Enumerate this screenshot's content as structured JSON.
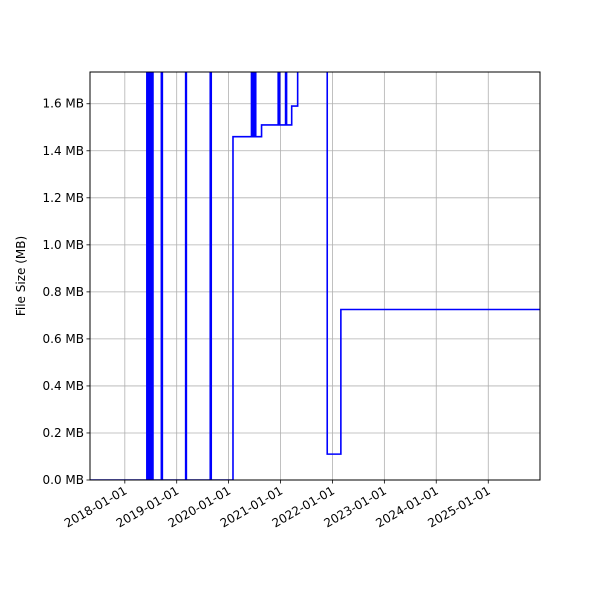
{
  "chart_data": {
    "type": "line",
    "drawstyle": "steps-post",
    "title": "",
    "xlabel": "",
    "ylabel": "File Size (MB)",
    "x_type": "date",
    "xlim": [
      "2017-05-01",
      "2025-12-31"
    ],
    "ylim": [
      0.0,
      1.735
    ],
    "x_ticks": [
      "2018-01-01",
      "2019-01-01",
      "2020-01-01",
      "2021-01-01",
      "2022-01-01",
      "2023-01-01",
      "2024-01-01",
      "2025-01-01"
    ],
    "y_ticks": [
      0.0,
      0.2,
      0.4,
      0.6,
      0.8,
      1.0,
      1.2,
      1.4,
      1.6
    ],
    "y_tick_labels": [
      "0.0 MB",
      "0.2 MB",
      "0.4 MB",
      "0.6 MB",
      "0.8 MB",
      "1.0 MB",
      "1.2 MB",
      "1.4 MB",
      "1.6 MB"
    ],
    "grid": true,
    "legend": false,
    "series": [
      {
        "color": "#0000ff",
        "points": [
          [
            "2017-05-01",
            0.0
          ],
          [
            "2018-06-05",
            1.9
          ],
          [
            "2018-06-10",
            0.0
          ],
          [
            "2018-06-15",
            1.9
          ],
          [
            "2018-06-20",
            0.0
          ],
          [
            "2018-06-25",
            1.9
          ],
          [
            "2018-07-01",
            0.0
          ],
          [
            "2018-07-10",
            1.9
          ],
          [
            "2018-07-18",
            0.0
          ],
          [
            "2018-09-15",
            1.9
          ],
          [
            "2018-09-22",
            0.0
          ],
          [
            "2019-03-05",
            1.9
          ],
          [
            "2019-03-10",
            0.0
          ],
          [
            "2019-08-25",
            1.9
          ],
          [
            "2019-09-01",
            0.0
          ],
          [
            "2020-02-01",
            1.46
          ],
          [
            "2020-06-10",
            1.9
          ],
          [
            "2020-06-20",
            1.46
          ],
          [
            "2020-07-01",
            1.9
          ],
          [
            "2020-07-10",
            1.46
          ],
          [
            "2020-08-20",
            1.51
          ],
          [
            "2020-12-15",
            1.9
          ],
          [
            "2020-12-25",
            1.51
          ],
          [
            "2021-02-05",
            1.9
          ],
          [
            "2021-02-12",
            1.51
          ],
          [
            "2021-03-20",
            1.59
          ],
          [
            "2021-05-01",
            1.9
          ],
          [
            "2021-11-25",
            0.11
          ],
          [
            "2022-03-01",
            0.725
          ],
          [
            "2025-12-31",
            0.725
          ]
        ]
      }
    ]
  }
}
